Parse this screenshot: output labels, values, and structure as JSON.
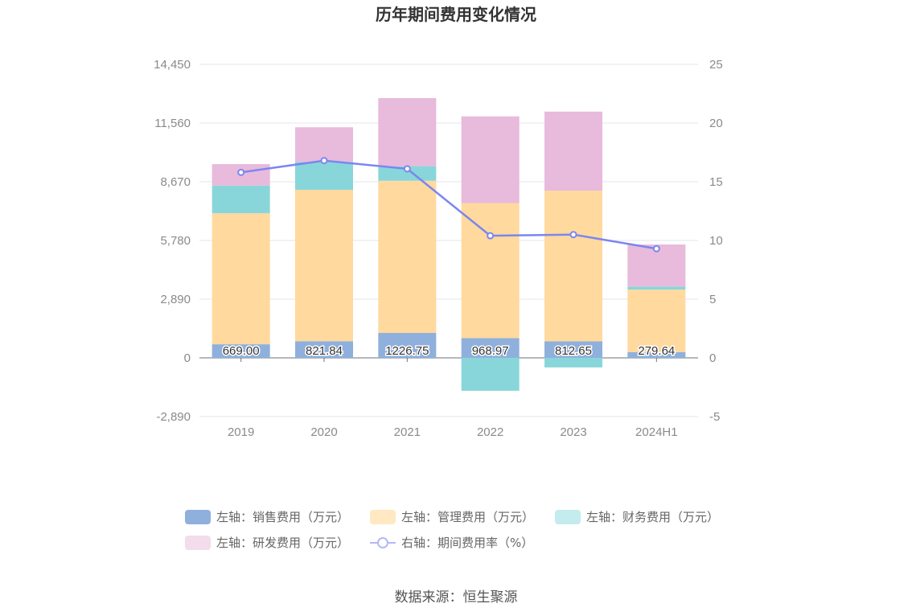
{
  "chart_data": {
    "type": "bar",
    "title": "历年期间费用变化情况",
    "categories": [
      "2019",
      "2020",
      "2021",
      "2022",
      "2023",
      "2024H1"
    ],
    "left_axis": {
      "ylim": [
        -2890,
        14450
      ],
      "ticks": [
        -2890,
        0,
        2890,
        5780,
        8670,
        11560,
        14450
      ],
      "tick_labels": [
        "-2,890",
        "0",
        "2,890",
        "5,780",
        "8,670",
        "11,560",
        "14,450"
      ]
    },
    "right_axis": {
      "ylim": [
        -5,
        25
      ],
      "ticks": [
        -5,
        0,
        5,
        10,
        15,
        20,
        25
      ],
      "tick_labels": [
        "-5",
        "0",
        "5",
        "10",
        "15",
        "20",
        "25"
      ]
    },
    "series": [
      {
        "name": "左轴：销售费用（万元）",
        "type": "bar",
        "axis": "left",
        "color": "#8fb0dc",
        "legend_color": "#8fb0dc",
        "values": [
          669.0,
          821.84,
          1226.75,
          968.97,
          812.65,
          279.64
        ],
        "labels": [
          "669.00",
          "821.84",
          "1226.75",
          "968.97",
          "812.65",
          "279.64"
        ]
      },
      {
        "name": "左轴：管理费用（万元）",
        "type": "bar",
        "axis": "left",
        "color": "#ffd99e",
        "legend_color": "#ffe8c2",
        "values": [
          6450,
          7450,
          7490,
          6650,
          7420,
          3080
        ]
      },
      {
        "name": "左轴：财务费用（万元）",
        "type": "bar",
        "axis": "left",
        "color": "#88d6da",
        "legend_color": "#c4ebee",
        "values": [
          1360,
          1380,
          720,
          -1620,
          -470,
          150
        ]
      },
      {
        "name": "左轴：研发费用（万元）",
        "type": "bar",
        "axis": "left",
        "color": "#e8badb",
        "legend_color": "#f3dcec",
        "values": [
          1060,
          1700,
          3350,
          4270,
          3890,
          2070
        ]
      },
      {
        "name": "右轴：期间费用率（%）",
        "type": "line",
        "axis": "right",
        "color": "#7b86f0",
        "legend_color": "#b3b9f5",
        "values": [
          15.8,
          16.8,
          16.1,
          10.4,
          10.5,
          9.3
        ]
      }
    ]
  },
  "source_text": "数据来源：恒生聚源"
}
